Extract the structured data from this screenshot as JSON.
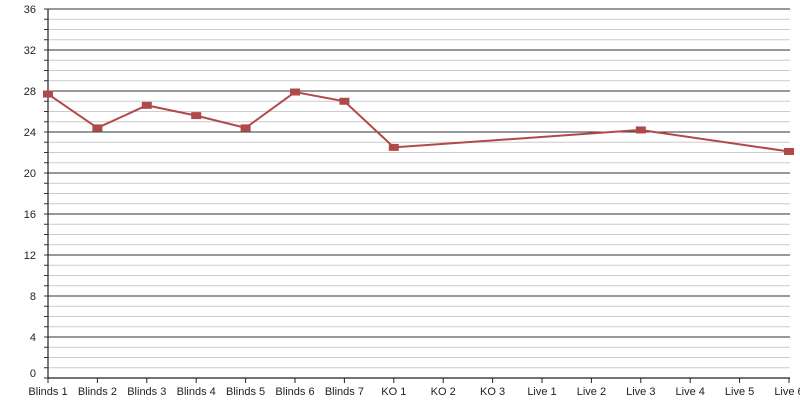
{
  "chart_data": {
    "type": "line",
    "title": "",
    "xlabel": "",
    "ylabel": "",
    "categories": [
      "Blinds 1",
      "Blinds 2",
      "Blinds 3",
      "Blinds 4",
      "Blinds 5",
      "Blinds 6",
      "Blinds 7",
      "KO 1",
      "KO 2",
      "KO 3",
      "Live 1",
      "Live 2",
      "Live 3",
      "Live 4",
      "Live 5",
      "Live 6"
    ],
    "series": [
      {
        "values": [
          27.7,
          24.4,
          26.6,
          25.6,
          24.4,
          27.9,
          27.0,
          22.5,
          null,
          null,
          null,
          null,
          24.2,
          null,
          null,
          22.1
        ],
        "color": "#b04a4a"
      }
    ],
    "ylim": [
      0,
      36
    ],
    "yticks": [
      0,
      4,
      8,
      12,
      16,
      20,
      24,
      28,
      32,
      36
    ],
    "minor_step": 1,
    "grid": true,
    "legend": "none"
  }
}
